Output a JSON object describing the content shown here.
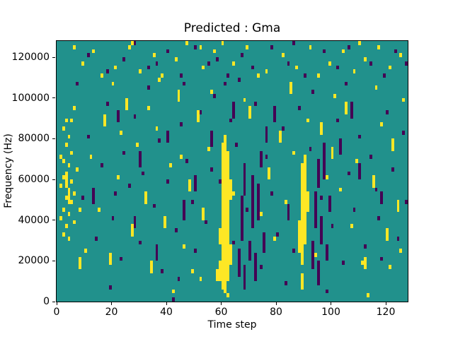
{
  "colors": {
    "figure_background": "#ffffff",
    "axis": "#000000",
    "mid": "#21918c",
    "high": "#fde725",
    "low": "#440154"
  },
  "chart_data": {
    "type": "heatmap",
    "title": "Predicted : Gma",
    "xlabel": "Time step",
    "ylabel": "Frequency (Hz)",
    "x_range": [
      0,
      128
    ],
    "y_range": [
      0,
      128000
    ],
    "x_bins": 128,
    "y_bins": 64,
    "bin_height_hz": 2000,
    "x_ticks": [
      0,
      20,
      40,
      60,
      80,
      100,
      120
    ],
    "y_ticks": [
      0,
      20000,
      40000,
      60000,
      80000,
      100000,
      120000
    ],
    "legend": "none",
    "grid": false,
    "value_colors": {
      "background_mid": "#21918c",
      "high": "#fde725",
      "low": "#440154"
    },
    "runs_high": [
      [
        59,
        5,
        9
      ],
      [
        59,
        14,
        17
      ],
      [
        60,
        3,
        38
      ],
      [
        61,
        2,
        40
      ],
      [
        62,
        5,
        36
      ],
      [
        63,
        9,
        13
      ],
      [
        63,
        25,
        29
      ],
      [
        88,
        12,
        19
      ],
      [
        89,
        3,
        6
      ],
      [
        89,
        9,
        33
      ],
      [
        90,
        14,
        35
      ],
      [
        91,
        22,
        26
      ],
      [
        3,
        28,
        31
      ],
      [
        4,
        24,
        27
      ],
      [
        8,
        8,
        10
      ],
      [
        17,
        43,
        45
      ],
      [
        19,
        9,
        11
      ],
      [
        25,
        47,
        49
      ],
      [
        27,
        16,
        18
      ],
      [
        32,
        24,
        26
      ],
      [
        34,
        7,
        9
      ],
      [
        39,
        18,
        20
      ],
      [
        44,
        49,
        51
      ],
      [
        48,
        27,
        29
      ],
      [
        51,
        44,
        46
      ],
      [
        53,
        20,
        22
      ],
      [
        58,
        5,
        7
      ],
      [
        70,
        45,
        47
      ],
      [
        77,
        30,
        32
      ],
      [
        81,
        39,
        41
      ],
      [
        85,
        51,
        53
      ],
      [
        96,
        41,
        43
      ],
      [
        100,
        35,
        37
      ],
      [
        105,
        46,
        48
      ],
      [
        112,
        8,
        10
      ],
      [
        115,
        28,
        30
      ],
      [
        120,
        15,
        17
      ],
      [
        122,
        37,
        39
      ],
      [
        124,
        22,
        24
      ]
    ],
    "cells_high": [
      [
        6,
        62
      ],
      [
        9,
        58
      ],
      [
        13,
        61
      ],
      [
        16,
        55
      ],
      [
        21,
        57
      ],
      [
        26,
        62
      ],
      [
        27,
        63
      ],
      [
        30,
        56
      ],
      [
        35,
        60
      ],
      [
        38,
        55
      ],
      [
        43,
        59
      ],
      [
        47,
        63
      ],
      [
        52,
        62
      ],
      [
        53,
        57
      ],
      [
        57,
        61
      ],
      [
        60,
        63
      ],
      [
        64,
        58
      ],
      [
        69,
        62
      ],
      [
        73,
        55
      ],
      [
        76,
        56
      ],
      [
        82,
        60
      ],
      [
        87,
        57
      ],
      [
        92,
        62
      ],
      [
        95,
        55
      ],
      [
        99,
        58
      ],
      [
        104,
        61
      ],
      [
        108,
        56
      ],
      [
        110,
        63
      ],
      [
        112,
        59
      ],
      [
        117,
        62
      ],
      [
        121,
        57
      ],
      [
        125,
        60
      ],
      [
        1,
        20
      ],
      [
        1,
        28
      ],
      [
        1,
        35
      ],
      [
        2,
        16
      ],
      [
        2,
        22
      ],
      [
        2,
        30
      ],
      [
        2,
        34
      ],
      [
        2,
        42
      ],
      [
        3,
        18
      ],
      [
        3,
        25
      ],
      [
        3,
        38
      ],
      [
        3,
        44
      ],
      [
        4,
        15
      ],
      [
        4,
        21
      ],
      [
        4,
        33
      ],
      [
        4,
        40
      ],
      [
        5,
        24
      ],
      [
        5,
        29
      ],
      [
        5,
        36
      ],
      [
        5,
        44
      ],
      [
        6,
        19
      ],
      [
        6,
        26
      ],
      [
        6,
        47
      ],
      [
        7,
        32
      ],
      [
        8,
        22
      ],
      [
        10,
        12
      ],
      [
        12,
        35
      ],
      [
        15,
        22
      ],
      [
        20,
        53
      ],
      [
        22,
        30
      ],
      [
        23,
        41
      ],
      [
        29,
        38
      ],
      [
        33,
        47
      ],
      [
        36,
        42
      ],
      [
        37,
        54
      ],
      [
        41,
        33
      ],
      [
        42,
        2
      ],
      [
        45,
        35
      ],
      [
        46,
        13
      ],
      [
        49,
        7
      ],
      [
        52,
        5
      ],
      [
        55,
        37
      ],
      [
        56,
        51
      ],
      [
        62,
        1
      ],
      [
        64,
        26
      ],
      [
        68,
        49
      ],
      [
        74,
        21
      ],
      [
        79,
        15
      ],
      [
        83,
        24
      ],
      [
        86,
        36
      ],
      [
        91,
        44
      ],
      [
        94,
        11
      ],
      [
        98,
        30
      ],
      [
        101,
        50
      ],
      [
        103,
        27
      ],
      [
        107,
        18
      ],
      [
        109,
        34
      ],
      [
        111,
        9
      ],
      [
        113,
        1
      ],
      [
        116,
        52
      ],
      [
        118,
        43
      ],
      [
        121,
        8
      ],
      [
        125,
        12
      ],
      [
        126,
        49
      ]
    ],
    "runs_low": [
      [
        66,
        6,
        12
      ],
      [
        67,
        15,
        25
      ],
      [
        68,
        3,
        8
      ],
      [
        68,
        26,
        33
      ],
      [
        70,
        10,
        14
      ],
      [
        71,
        18,
        30
      ],
      [
        72,
        5,
        11
      ],
      [
        73,
        20,
        28
      ],
      [
        74,
        33,
        36
      ],
      [
        75,
        12,
        16
      ],
      [
        93,
        8,
        14
      ],
      [
        94,
        18,
        26
      ],
      [
        95,
        4,
        9
      ],
      [
        95,
        28,
        34
      ],
      [
        96,
        14,
        20
      ],
      [
        97,
        30,
        38
      ],
      [
        98,
        10,
        13
      ],
      [
        99,
        22,
        25
      ],
      [
        13,
        24,
        27
      ],
      [
        22,
        44,
        46
      ],
      [
        28,
        18,
        20
      ],
      [
        30,
        33,
        36
      ],
      [
        36,
        10,
        13
      ],
      [
        40,
        39,
        41
      ],
      [
        46,
        20,
        24
      ],
      [
        50,
        27,
        30
      ],
      [
        56,
        38,
        41
      ],
      [
        64,
        45,
        48
      ],
      [
        76,
        39,
        42
      ],
      [
        79,
        44,
        47
      ],
      [
        84,
        20,
        23
      ],
      [
        103,
        36,
        39
      ],
      [
        107,
        45,
        48
      ],
      [
        110,
        30,
        33
      ],
      [
        118,
        24,
        26
      ]
    ],
    "cells_low": [
      [
        11,
        60
      ],
      [
        18,
        56
      ],
      [
        24,
        59
      ],
      [
        28,
        63
      ],
      [
        33,
        57
      ],
      [
        40,
        61
      ],
      [
        45,
        55
      ],
      [
        50,
        62
      ],
      [
        55,
        58
      ],
      [
        58,
        59
      ],
      [
        62,
        55
      ],
      [
        67,
        60
      ],
      [
        71,
        57
      ],
      [
        78,
        62
      ],
      [
        84,
        58
      ],
      [
        86,
        63
      ],
      [
        90,
        55
      ],
      [
        97,
        61
      ],
      [
        102,
        57
      ],
      [
        106,
        62
      ],
      [
        114,
        58
      ],
      [
        119,
        55
      ],
      [
        123,
        61
      ],
      [
        127,
        58
      ],
      [
        36,
        58
      ],
      [
        7,
        53
      ],
      [
        9,
        25
      ],
      [
        11,
        40
      ],
      [
        14,
        15
      ],
      [
        16,
        33
      ],
      [
        18,
        48
      ],
      [
        19,
        3
      ],
      [
        20,
        20
      ],
      [
        21,
        26
      ],
      [
        23,
        10
      ],
      [
        24,
        36
      ],
      [
        26,
        28
      ],
      [
        28,
        45
      ],
      [
        30,
        14
      ],
      [
        31,
        31
      ],
      [
        33,
        52
      ],
      [
        35,
        23
      ],
      [
        37,
        39
      ],
      [
        38,
        7
      ],
      [
        40,
        29
      ],
      [
        42,
        0
      ],
      [
        43,
        17
      ],
      [
        44,
        5
      ],
      [
        45,
        43
      ],
      [
        46,
        53
      ],
      [
        47,
        34
      ],
      [
        49,
        24
      ],
      [
        50,
        12
      ],
      [
        52,
        46
      ],
      [
        54,
        19
      ],
      [
        56,
        32
      ],
      [
        57,
        50
      ],
      [
        59,
        29
      ],
      [
        61,
        53
      ],
      [
        63,
        44
      ],
      [
        64,
        14
      ],
      [
        65,
        38
      ],
      [
        66,
        54
      ],
      [
        69,
        22
      ],
      [
        72,
        48
      ],
      [
        74,
        8
      ],
      [
        76,
        35
      ],
      [
        78,
        26
      ],
      [
        80,
        16
      ],
      [
        82,
        42
      ],
      [
        83,
        4
      ],
      [
        86,
        12
      ],
      [
        88,
        47
      ],
      [
        92,
        37
      ],
      [
        93,
        51
      ],
      [
        96,
        25
      ],
      [
        98,
        2
      ],
      [
        100,
        18
      ],
      [
        102,
        44
      ],
      [
        104,
        9
      ],
      [
        105,
        53
      ],
      [
        106,
        31
      ],
      [
        108,
        22
      ],
      [
        110,
        40
      ],
      [
        112,
        13
      ],
      [
        114,
        35
      ],
      [
        116,
        27
      ],
      [
        117,
        20
      ],
      [
        118,
        10
      ],
      [
        120,
        46
      ],
      [
        122,
        32
      ],
      [
        124,
        15
      ],
      [
        126,
        41
      ],
      [
        127,
        24
      ]
    ]
  }
}
